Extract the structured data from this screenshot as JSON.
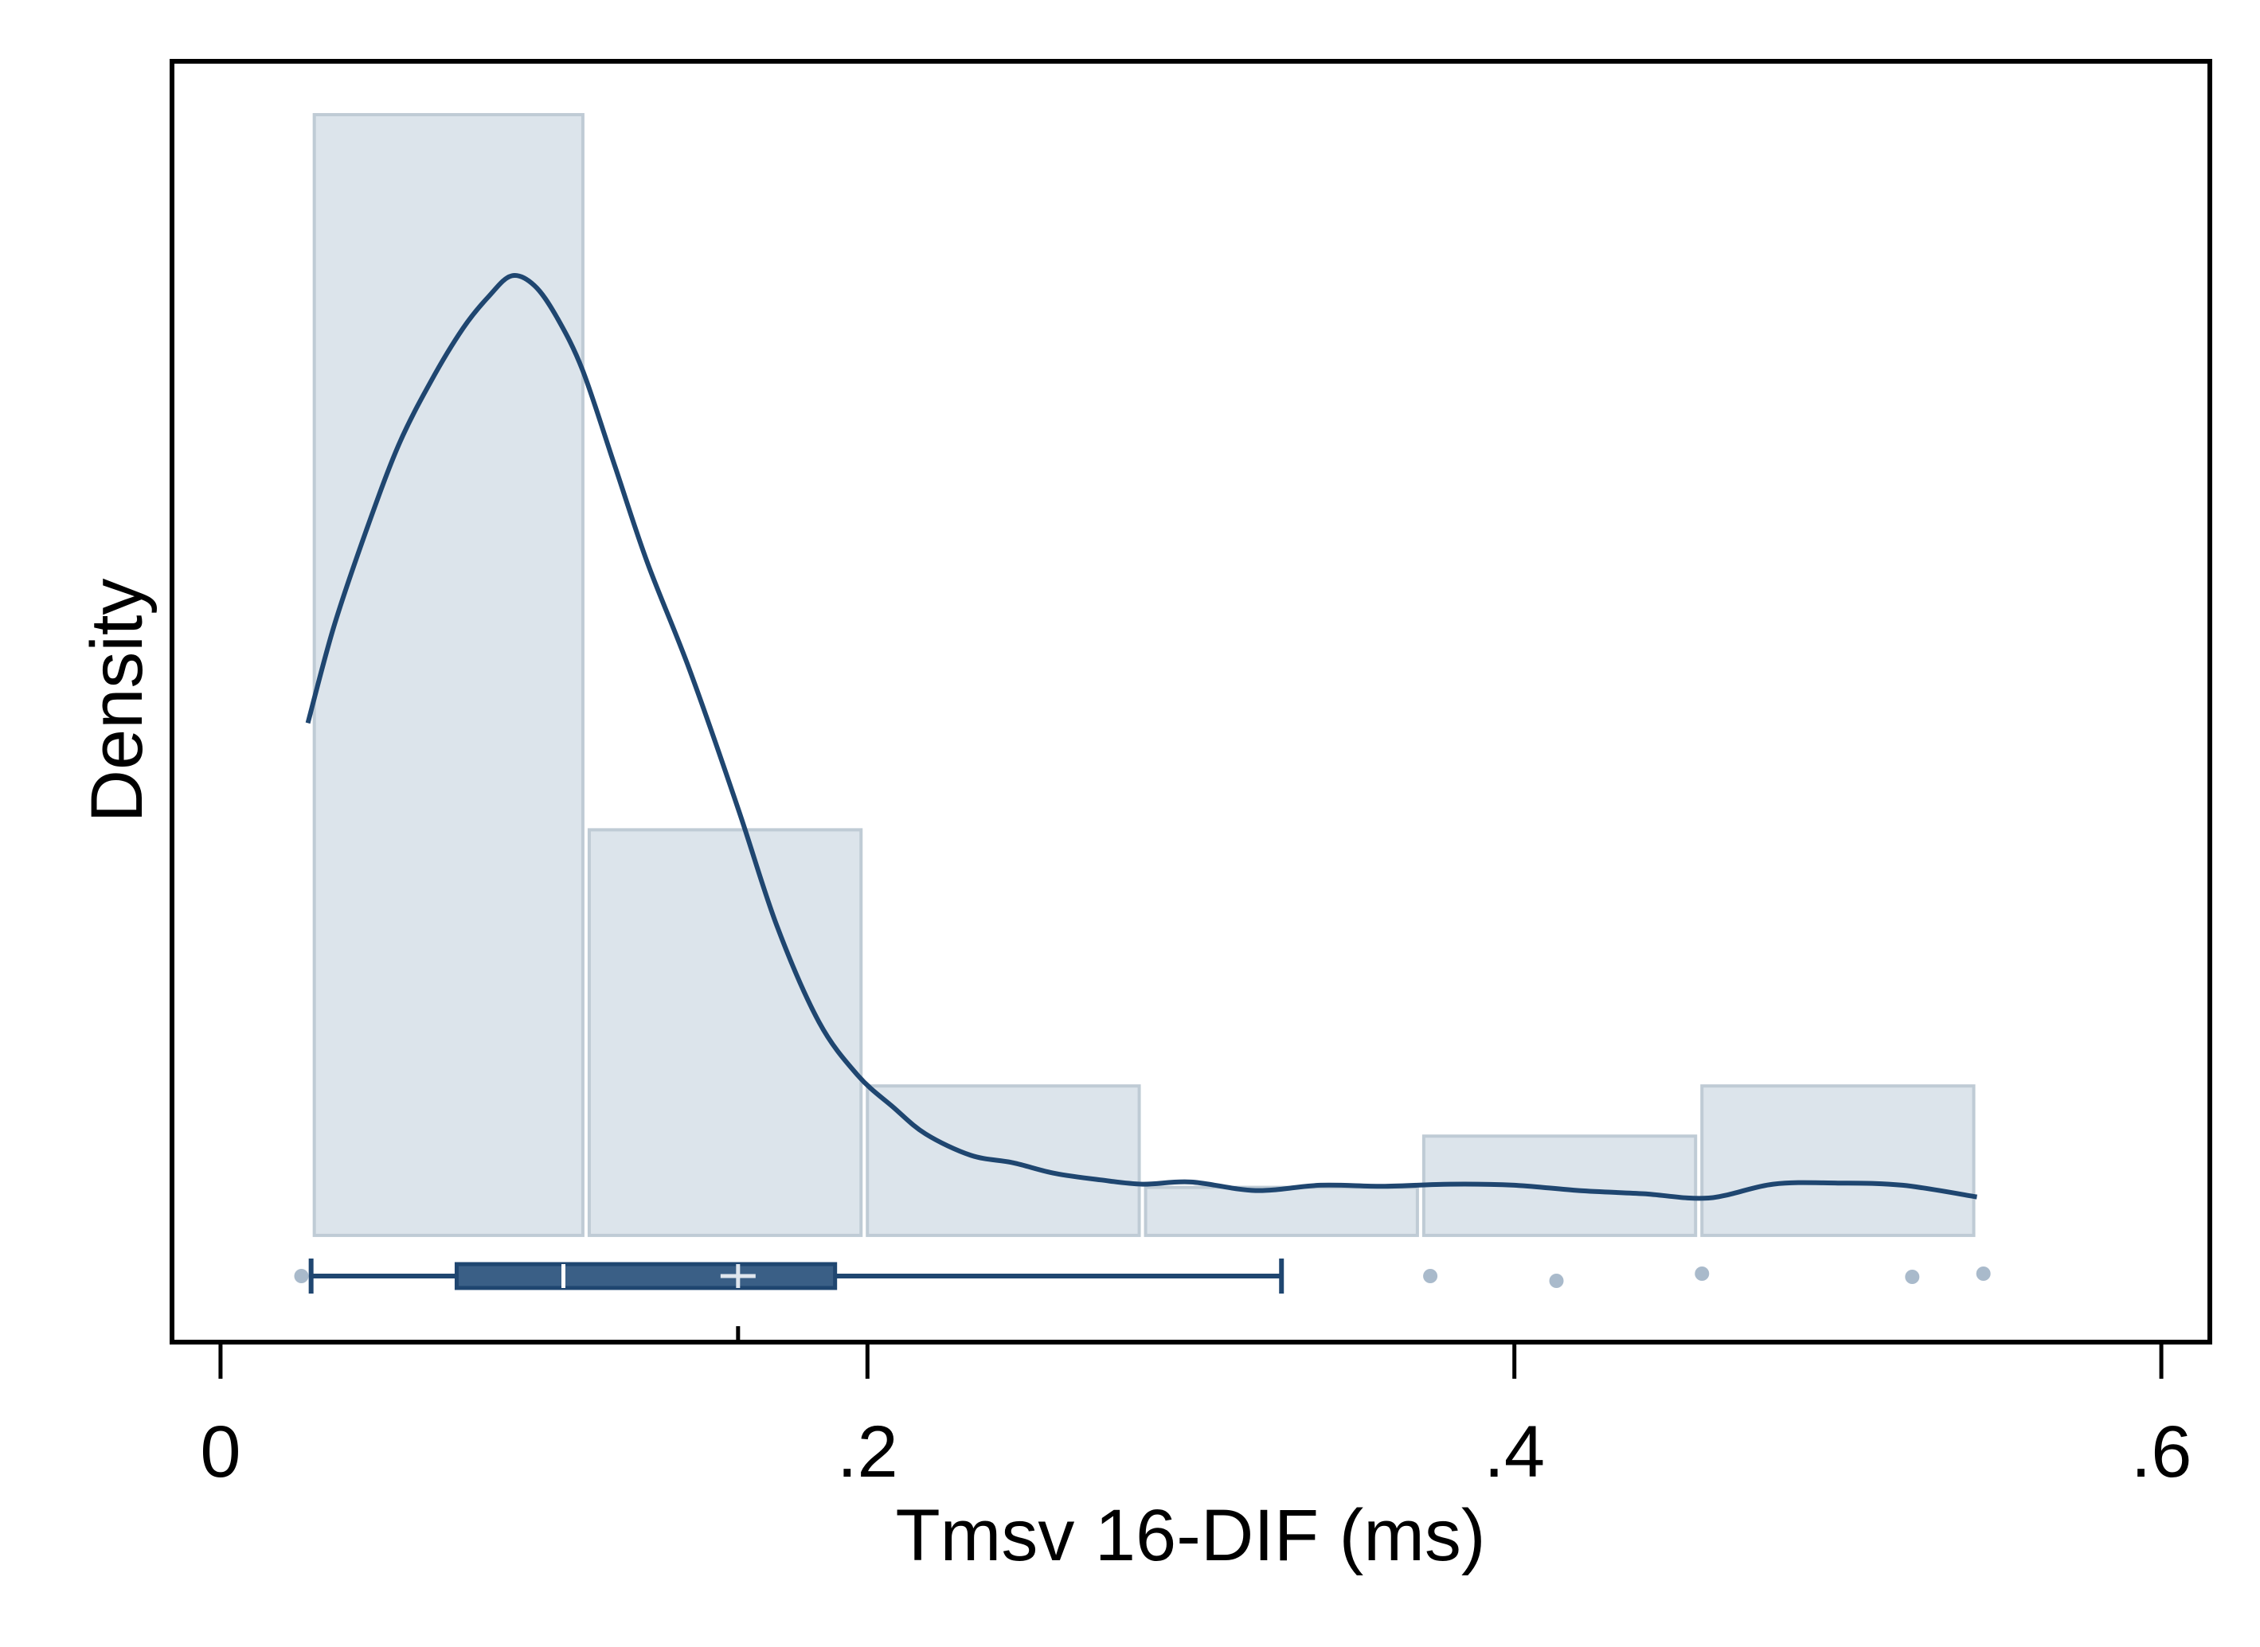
{
  "chart_data": {
    "type": "histogram",
    "xlabel": "Tmsv 16-DIF (ms)",
    "ylabel": "Density",
    "xlim": [
      -0.015,
      0.615
    ],
    "x_ticks": [
      0,
      0.2,
      0.4,
      0.6
    ],
    "x_tick_labels": [
      "0",
      ".2",
      ".4",
      ".6"
    ],
    "y_ticks": [],
    "grid": false,
    "legend": "none",
    "histogram": {
      "bins": [
        {
          "start": 0.028,
          "end": 0.113,
          "density": 10.5
        },
        {
          "start": 0.113,
          "end": 0.199,
          "density": 3.8
        },
        {
          "start": 0.199,
          "end": 0.285,
          "density": 1.4
        },
        {
          "start": 0.285,
          "end": 0.371,
          "density": 0.45
        },
        {
          "start": 0.371,
          "end": 0.457,
          "density": 0.93
        },
        {
          "start": 0.457,
          "end": 0.543,
          "density": 1.4
        }
      ]
    },
    "kde": {
      "x": [
        0.027,
        0.035,
        0.045,
        0.055,
        0.065,
        0.075,
        0.083,
        0.09,
        0.097,
        0.104,
        0.112,
        0.122,
        0.132,
        0.145,
        0.16,
        0.172,
        0.185,
        0.197,
        0.208,
        0.218,
        0.232,
        0.245,
        0.258,
        0.272,
        0.285,
        0.3,
        0.32,
        0.34,
        0.36,
        0.38,
        0.4,
        0.42,
        0.44,
        0.46,
        0.48,
        0.5,
        0.52,
        0.543
      ],
      "y": [
        4.8,
        5.7,
        6.6,
        7.4,
        8.0,
        8.5,
        8.8,
        8.99,
        8.9,
        8.6,
        8.1,
        7.2,
        6.3,
        5.3,
        4.0,
        2.9,
        2.0,
        1.5,
        1.2,
        0.95,
        0.75,
        0.68,
        0.58,
        0.52,
        0.48,
        0.5,
        0.42,
        0.47,
        0.46,
        0.48,
        0.47,
        0.42,
        0.39,
        0.35,
        0.48,
        0.49,
        0.47,
        0.36
      ]
    },
    "ylim": [
      -1.0,
      11.0
    ],
    "boxplot": {
      "whisker_low": 0.028,
      "q1": 0.073,
      "median": 0.106,
      "mean": 0.16,
      "q3": 0.19,
      "whisker_high": 0.328,
      "outliers": [
        0.025,
        0.374,
        0.413,
        0.458,
        0.523,
        0.545
      ]
    },
    "colors": {
      "bar_fill": "#dce4eb",
      "bar_stroke": "#bfcbd5",
      "kde_line": "#1f4670",
      "box_fill": "#3a5f86",
      "box_stroke": "#1f4670",
      "outlier": "#a9bacb",
      "frame": "#000000"
    }
  }
}
